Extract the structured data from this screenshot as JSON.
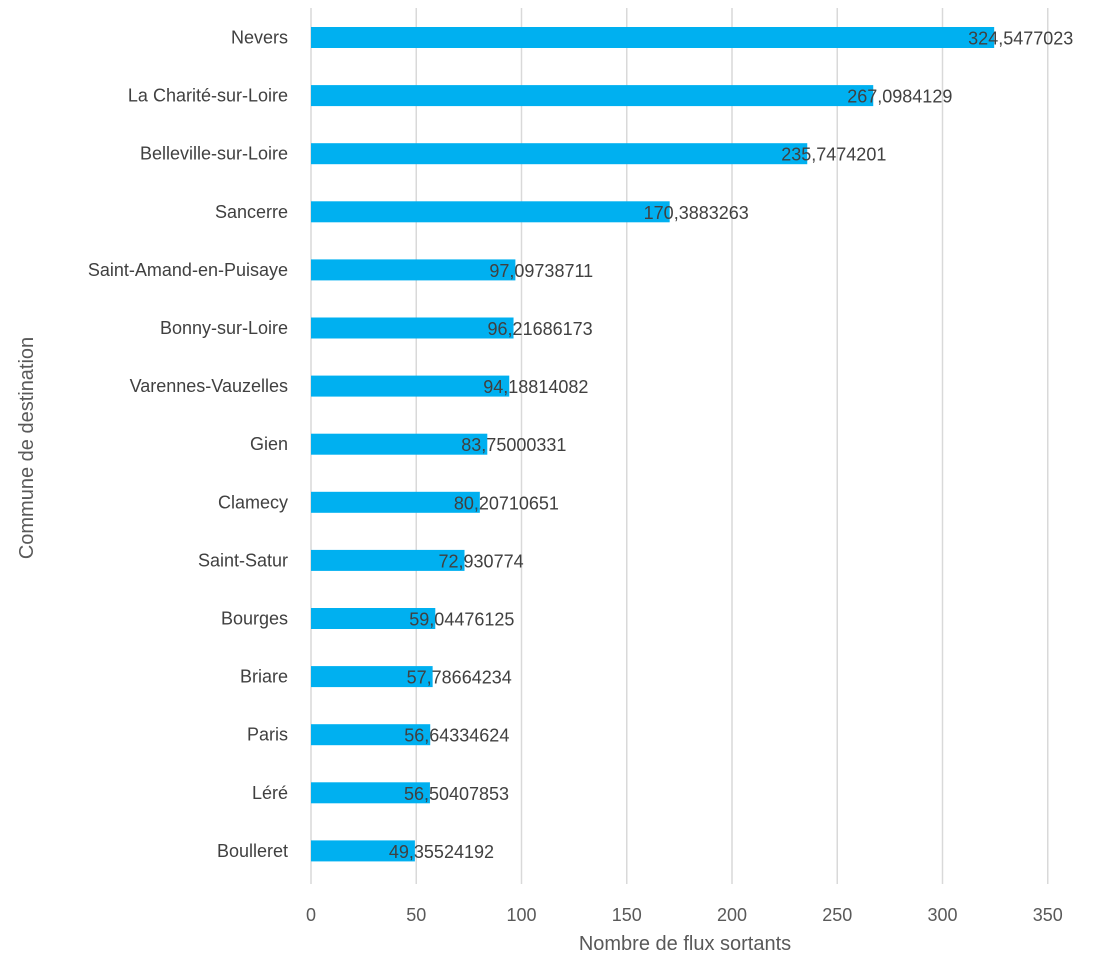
{
  "chart_data": {
    "type": "bar",
    "orientation": "horizontal",
    "title": "",
    "xlabel": "Nombre de flux sortants",
    "ylabel": "Commune de destination",
    "xlim": [
      0,
      350
    ],
    "xticks": [
      0,
      50,
      100,
      150,
      200,
      250,
      300,
      350
    ],
    "grid": "vertical",
    "categories": [
      "Nevers",
      "La Charité-sur-Loire",
      "Belleville-sur-Loire",
      "Sancerre",
      "Saint-Amand-en-Puisaye",
      "Bonny-sur-Loire",
      "Varennes-Vauzelles",
      "Gien",
      "Clamecy",
      "Saint-Satur",
      "Bourges",
      "Briare",
      "Paris",
      "Léré",
      "Boulleret"
    ],
    "values": [
      324.5477023,
      267.0984129,
      235.7474201,
      170.3883263,
      97.09738711,
      96.21686173,
      94.18814082,
      83.75000331,
      80.20710651,
      72.930774,
      59.04476125,
      57.78664234,
      56.64334624,
      56.50407853,
      49.35524192
    ],
    "data_labels": [
      "324,5477023",
      "267,0984129",
      "235,7474201",
      "170,3883263",
      "97,09738711",
      "96,21686173",
      "94,18814082",
      "83,75000331",
      "80,20710651",
      "72,930774",
      "59,04476125",
      "57,78664234",
      "56,64334624",
      "56,50407853",
      "49,35524192"
    ],
    "bar_color": "#00B0F0"
  }
}
